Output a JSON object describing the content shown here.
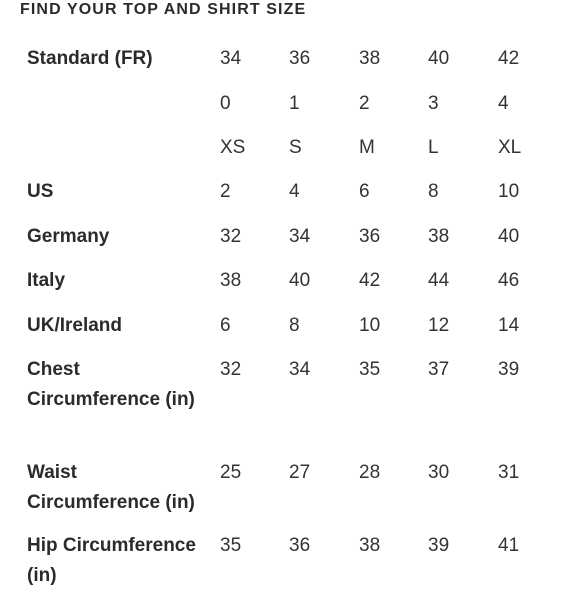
{
  "title": "FIND YOUR TOP AND SHIRT SIZE",
  "rows": [
    {
      "label": "Standard (FR)",
      "values": [
        "34",
        "36",
        "38",
        "40",
        "42"
      ]
    },
    {
      "label": "",
      "values": [
        "0",
        "1",
        "2",
        "3",
        "4"
      ]
    },
    {
      "label": "",
      "values": [
        "XS",
        "S",
        "M",
        "L",
        "XL"
      ]
    },
    {
      "label": "US",
      "values": [
        "2",
        "4",
        "6",
        "8",
        "10"
      ]
    },
    {
      "label": "Germany",
      "values": [
        "32",
        "34",
        "36",
        "38",
        "40"
      ]
    },
    {
      "label": "Italy",
      "values": [
        "38",
        "40",
        "42",
        "44",
        "46"
      ]
    },
    {
      "label": "UK/Ireland",
      "values": [
        "6",
        "8",
        "10",
        "12",
        "14"
      ]
    },
    {
      "label": "Chest Circumference (in)",
      "values": [
        "32",
        "34",
        "35",
        "37",
        "39"
      ]
    },
    {
      "label": "Waist Circumference (in)",
      "values": [
        "25",
        "27",
        "28",
        "30",
        "31"
      ]
    },
    {
      "label": "Hip Circumference (in)",
      "values": [
        "35",
        "36",
        "38",
        "39",
        "41"
      ]
    }
  ]
}
